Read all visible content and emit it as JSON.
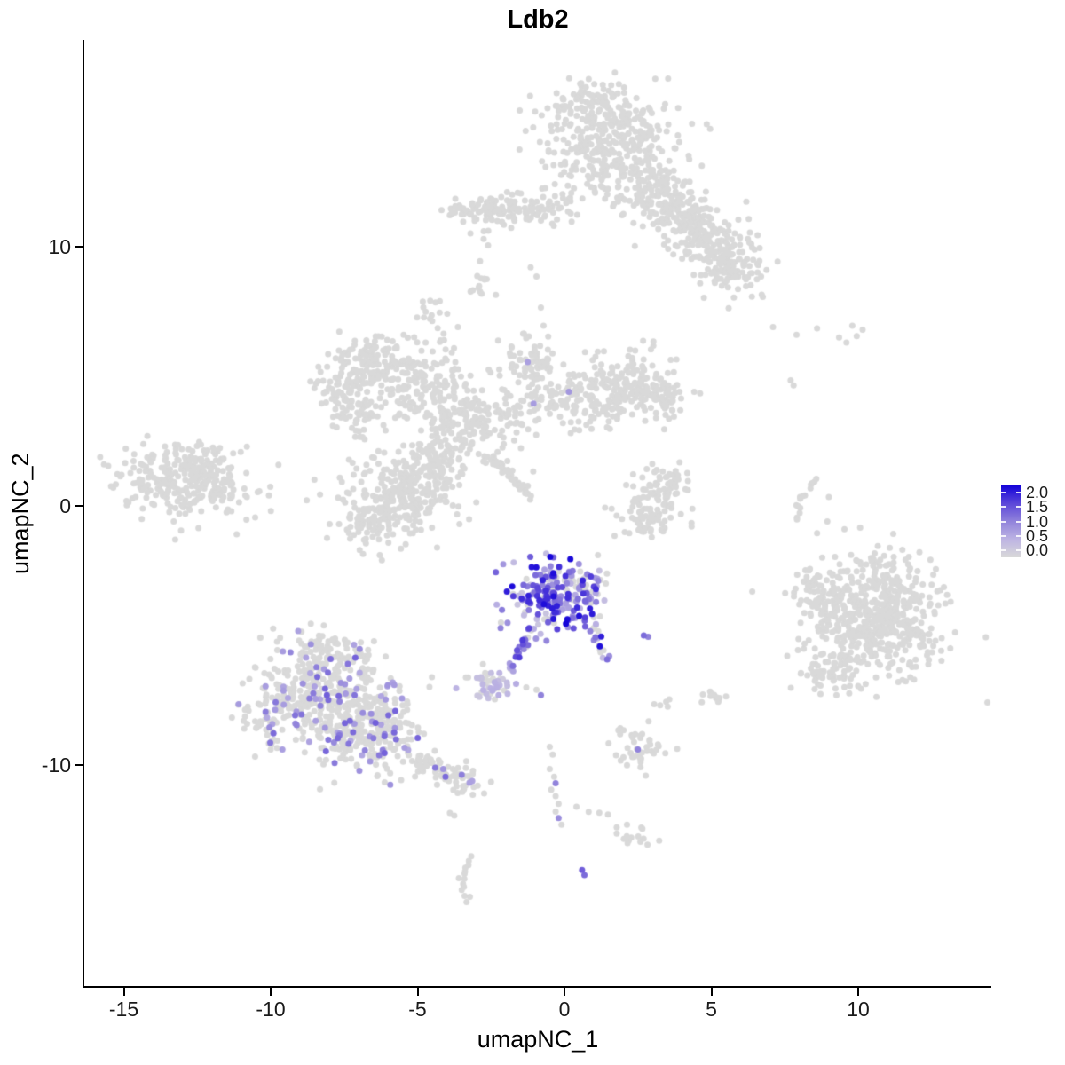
{
  "chart_data": {
    "type": "scatter",
    "title": "Ldb2",
    "xlabel": "umapNC_1",
    "ylabel": "umapNC_2",
    "x_ticks": [
      -15,
      -10,
      -5,
      0,
      5,
      10
    ],
    "x_tick_labels": [
      "-15",
      "-10",
      "-5",
      "0",
      "5",
      "10"
    ],
    "y_ticks": [
      10,
      0,
      -10
    ],
    "y_tick_labels": [
      "10",
      "0",
      "-10"
    ],
    "xlim": [
      -16.3,
      14.5
    ],
    "ylim": [
      -18.6,
      18.0
    ],
    "grid": false,
    "legend": {
      "position": "right",
      "labels": [
        "2.0",
        "1.5",
        "1.0",
        "0.5",
        "0.0"
      ],
      "values": [
        2.0,
        1.5,
        1.0,
        0.5,
        0.0
      ],
      "min": 0.0,
      "max": 2.0
    },
    "colors": {
      "background": "#FFFFFF",
      "axis": "#000000",
      "zero_expression": "#D9D9D9",
      "ramp_low_to_high": [
        "#D9D9D9",
        "#BDB4E3",
        "#9183DB",
        "#5B46D9",
        "#1403D9"
      ]
    },
    "point_radius_px": 3.5,
    "clusters": [
      {
        "name": "top-main",
        "type": "gauss",
        "cx": 1.6,
        "cy": 14.0,
        "sx": 1.1,
        "sy": 1.0,
        "n": 360
      },
      {
        "name": "top-upper",
        "type": "gauss",
        "cx": 1.0,
        "cy": 15.6,
        "sx": 0.8,
        "sy": 0.45,
        "n": 70
      },
      {
        "name": "top-arm-1",
        "type": "gauss",
        "cx": 3.1,
        "cy": 12.0,
        "sx": 0.6,
        "sy": 0.55,
        "n": 110
      },
      {
        "name": "top-arm-2",
        "type": "gauss",
        "cx": 4.2,
        "cy": 11.1,
        "sx": 0.6,
        "sy": 0.55,
        "n": 110
      },
      {
        "name": "top-arm-3",
        "type": "gauss",
        "cx": 5.1,
        "cy": 10.1,
        "sx": 0.6,
        "sy": 0.5,
        "n": 100
      },
      {
        "name": "top-arm-4",
        "type": "gauss",
        "cx": 5.7,
        "cy": 9.1,
        "sx": 0.55,
        "sy": 0.5,
        "n": 90
      },
      {
        "name": "top-band",
        "type": "gauss",
        "cx": -1.3,
        "cy": 11.5,
        "sx": 1.15,
        "sy": 0.33,
        "n": 120
      },
      {
        "name": "top-band-far-left",
        "type": "gauss",
        "cx": -3.1,
        "cy": 11.3,
        "sx": 0.45,
        "sy": 0.28,
        "n": 30
      },
      {
        "name": "top-small-blob",
        "type": "gauss",
        "cx": -2.75,
        "cy": 8.6,
        "sx": 0.22,
        "sy": 0.35,
        "n": 13
      },
      {
        "name": "mid-left-arm",
        "type": "gauss",
        "cx": -6.4,
        "cy": 5.4,
        "sx": 0.95,
        "sy": 0.6,
        "n": 170
      },
      {
        "name": "mid-left-spur",
        "type": "gauss",
        "cx": -7.5,
        "cy": 4.4,
        "sx": 0.45,
        "sy": 0.45,
        "n": 50
      },
      {
        "name": "mid-left-low",
        "type": "gauss",
        "cx": -6.9,
        "cy": 3.4,
        "sx": 0.5,
        "sy": 0.4,
        "n": 50
      },
      {
        "name": "mid-connector",
        "type": "gauss",
        "cx": -4.7,
        "cy": 4.4,
        "sx": 0.75,
        "sy": 0.55,
        "n": 110
      },
      {
        "name": "mid-top-blob",
        "type": "gauss",
        "cx": -4.5,
        "cy": 7.4,
        "sx": 0.3,
        "sy": 0.3,
        "n": 15
      },
      {
        "name": "mid-top-chain",
        "type": "line",
        "x1": -4.2,
        "y1": 6.6,
        "x2": -3.8,
        "y2": 5.4,
        "n": 10,
        "jx": 0.12,
        "jy": 0.12
      },
      {
        "name": "mid-central",
        "type": "gauss",
        "cx": -3.1,
        "cy": 3.1,
        "sx": 0.85,
        "sy": 0.7,
        "n": 170
      },
      {
        "name": "mid-upper-arm",
        "type": "gauss",
        "cx": -1.3,
        "cy": 5.2,
        "sx": 0.5,
        "sy": 0.85,
        "n": 90
      },
      {
        "name": "mid-right-arm",
        "type": "gauss",
        "cx": 0.7,
        "cy": 4.2,
        "sx": 1.05,
        "sy": 0.6,
        "n": 150
      },
      {
        "name": "mid-right-end",
        "type": "gauss",
        "cx": 2.4,
        "cy": 4.7,
        "sx": 0.75,
        "sy": 0.6,
        "n": 120
      },
      {
        "name": "mid-right-tip",
        "type": "gauss",
        "cx": 3.3,
        "cy": 4.1,
        "sx": 0.4,
        "sy": 0.5,
        "n": 50
      },
      {
        "name": "mid-lower-lobe",
        "type": "gauss",
        "cx": -5.4,
        "cy": 0.5,
        "sx": 0.95,
        "sy": 0.8,
        "n": 260
      },
      {
        "name": "mid-lobe-tail",
        "type": "gauss",
        "cx": -6.6,
        "cy": -0.7,
        "sx": 0.55,
        "sy": 0.45,
        "n": 70
      },
      {
        "name": "mid-streak",
        "type": "line",
        "x1": -2.55,
        "y1": 1.95,
        "x2": -1.15,
        "y2": 0.35,
        "n": 45,
        "jx": 0.07,
        "jy": 0.07
      },
      {
        "name": "mid-connector-2",
        "type": "gauss",
        "cx": -4.3,
        "cy": 1.8,
        "sx": 0.55,
        "sy": 0.5,
        "n": 80
      },
      {
        "name": "left-island",
        "type": "gauss",
        "cx": -12.6,
        "cy": 1.05,
        "sx": 1.05,
        "sy": 0.7,
        "n": 270
      },
      {
        "name": "left-island-tip",
        "type": "gauss",
        "cx": -14.3,
        "cy": 0.9,
        "sx": 0.5,
        "sy": 0.35,
        "n": 30
      },
      {
        "name": "center-crescent-upper",
        "type": "gauss",
        "cx": 3.3,
        "cy": 0.7,
        "sx": 0.5,
        "sy": 0.4,
        "n": 70
      },
      {
        "name": "center-crescent-lower",
        "type": "gauss",
        "cx": 2.8,
        "cy": -0.45,
        "sx": 0.55,
        "sy": 0.38,
        "n": 65
      },
      {
        "name": "right-arc-upper",
        "type": "line",
        "x1": 8.55,
        "y1": 1.05,
        "x2": 8.0,
        "y2": 0.3,
        "n": 8,
        "jx": 0.06,
        "jy": 0.06
      },
      {
        "name": "right-arc-lower",
        "type": "line",
        "x1": 8.0,
        "y1": 0.3,
        "x2": 7.9,
        "y2": -0.55,
        "n": 7,
        "jx": 0.06,
        "jy": 0.06
      },
      {
        "name": "right-island",
        "type": "gauss",
        "cx": 10.5,
        "cy": -4.3,
        "sx": 1.15,
        "sy": 1.2,
        "n": 600
      },
      {
        "name": "right-island-appendage",
        "type": "gauss",
        "cx": 8.35,
        "cy": -3.3,
        "sx": 0.3,
        "sy": 0.55,
        "n": 35
      },
      {
        "name": "right-island-spur",
        "type": "gauss",
        "cx": 9.0,
        "cy": -6.6,
        "sx": 0.5,
        "sy": 0.35,
        "n": 45
      },
      {
        "name": "expr-main",
        "type": "gauss",
        "cx": -0.45,
        "cy": -3.5,
        "sx": 0.72,
        "sy": 0.65,
        "n": 190,
        "expr": {
          "frac": 0.8,
          "lo": 0.25,
          "hi": 2.0
        }
      },
      {
        "name": "expr-top-right",
        "type": "gauss",
        "cx": 0.55,
        "cy": -2.9,
        "sx": 0.45,
        "sy": 0.4,
        "n": 45,
        "expr": {
          "frac": 0.55,
          "lo": 0.3,
          "hi": 1.8
        }
      },
      {
        "name": "expr-tail-left",
        "type": "line",
        "x1": -1.25,
        "y1": -4.85,
        "x2": -1.85,
        "y2": -6.3,
        "n": 24,
        "jx": 0.09,
        "jy": 0.09,
        "expr": {
          "frac": 0.88,
          "lo": 0.5,
          "hi": 1.6
        }
      },
      {
        "name": "expr-tail-right",
        "type": "line",
        "x1": 0.95,
        "y1": -4.35,
        "x2": 1.35,
        "y2": -5.9,
        "n": 20,
        "jx": 0.1,
        "jy": 0.1,
        "expr": {
          "frac": 0.5,
          "lo": 0.4,
          "hi": 2.0
        }
      },
      {
        "name": "small-center-cluster",
        "type": "gauss",
        "cx": -2.55,
        "cy": -6.9,
        "sx": 0.42,
        "sy": 0.3,
        "n": 48,
        "expr": {
          "frac": 0.5,
          "lo": 0.15,
          "hi": 0.6
        }
      },
      {
        "name": "bottom-left-upper",
        "type": "gauss",
        "cx": -8.4,
        "cy": -7.3,
        "sx": 1.05,
        "sy": 0.95,
        "n": 320,
        "expr": {
          "frac": 0.12,
          "lo": 0.6,
          "hi": 1.3
        }
      },
      {
        "name": "bottom-left-lower",
        "type": "gauss",
        "cx": -6.7,
        "cy": -8.7,
        "sx": 0.95,
        "sy": 0.8,
        "n": 270,
        "expr": {
          "frac": 0.13,
          "lo": 0.6,
          "hi": 1.3
        }
      },
      {
        "name": "bottom-left-top-spur",
        "type": "gauss",
        "cx": -8.1,
        "cy": -5.6,
        "sx": 0.7,
        "sy": 0.35,
        "n": 70,
        "expr": {
          "frac": 0.1,
          "lo": 0.6,
          "hi": 1.2
        }
      },
      {
        "name": "bottom-left-west-edge",
        "type": "gauss",
        "cx": -10.2,
        "cy": -8.3,
        "sx": 0.4,
        "sy": 0.6,
        "n": 45,
        "expr": {
          "frac": 0.1,
          "lo": 0.6,
          "hi": 1.2
        }
      },
      {
        "name": "bottom-left-tail",
        "type": "line",
        "x1": -5.2,
        "y1": -9.7,
        "x2": -3.0,
        "y2": -10.85,
        "n": 85,
        "jx": 0.3,
        "jy": 0.28,
        "expr": {
          "frac": 0.1,
          "lo": 0.6,
          "hi": 1.2
        }
      },
      {
        "name": "bottom-chain-row",
        "type": "line",
        "x1": 0.45,
        "y1": -11.65,
        "x2": 1.5,
        "y2": -11.9,
        "n": 4,
        "jx": 0.04,
        "jy": 0.04
      },
      {
        "name": "bottom-blob",
        "type": "gauss",
        "cx": 2.3,
        "cy": -12.65,
        "sx": 0.32,
        "sy": 0.2,
        "n": 15
      },
      {
        "name": "bottom-crescent-upper",
        "type": "line",
        "x1": -3.2,
        "y1": -13.55,
        "x2": -3.5,
        "y2": -14.4,
        "n": 7,
        "jx": 0.07,
        "jy": 0.05
      },
      {
        "name": "bottom-crescent-lower",
        "type": "line",
        "x1": -3.5,
        "y1": -14.4,
        "x2": -3.3,
        "y2": -15.3,
        "n": 7,
        "jx": 0.07,
        "jy": 0.05
      },
      {
        "name": "bottom-right-small",
        "type": "gauss",
        "cx": 2.5,
        "cy": -9.35,
        "sx": 0.5,
        "sy": 0.42,
        "n": 42
      },
      {
        "name": "bottom-tiny-blob-1",
        "type": "gauss",
        "cx": 3.4,
        "cy": -7.55,
        "sx": 0.15,
        "sy": 0.15,
        "n": 5
      },
      {
        "name": "bottom-tiny-blob-2",
        "type": "gauss",
        "cx": 5.05,
        "cy": -7.3,
        "sx": 0.25,
        "sy": 0.2,
        "n": 12
      }
    ],
    "stray_points": [
      {
        "x": -1.15,
        "y": 9.2
      },
      {
        "x": -0.95,
        "y": 8.85
      },
      {
        "x": -2.75,
        "y": 10.3
      },
      {
        "x": -2.6,
        "y": 10.05
      },
      {
        "x": -1.25,
        "y": 5.55,
        "v": 0.7
      },
      {
        "x": -1.05,
        "y": 3.95,
        "v": 0.75
      },
      {
        "x": 0.15,
        "y": 4.4,
        "v": 0.8
      },
      {
        "x": -13.3,
        "y": -0.6
      },
      {
        "x": -13.05,
        "y": -0.95
      },
      {
        "x": -13.25,
        "y": -1.3
      },
      {
        "x": 7.1,
        "y": 6.9
      },
      {
        "x": 7.9,
        "y": 6.6
      },
      {
        "x": 8.6,
        "y": 6.85
      },
      {
        "x": 9.35,
        "y": 6.5
      },
      {
        "x": 9.8,
        "y": 6.95
      },
      {
        "x": 9.95,
        "y": 6.55
      },
      {
        "x": 9.6,
        "y": 6.3
      },
      {
        "x": 10.15,
        "y": 6.8
      },
      {
        "x": 7.7,
        "y": 4.85
      },
      {
        "x": 7.8,
        "y": 4.65
      },
      {
        "x": 9.0,
        "y": 0.34
      },
      {
        "x": 8.95,
        "y": -0.6
      },
      {
        "x": 8.6,
        "y": -1.05
      },
      {
        "x": 2.7,
        "y": -5.0,
        "v": 1.2
      },
      {
        "x": 2.85,
        "y": -5.05,
        "v": 1.0
      },
      {
        "x": 0.05,
        "y": -4.55,
        "v": 2.0
      },
      {
        "x": 0.5,
        "y": -4.25,
        "v": 1.9
      },
      {
        "x": -1.3,
        "y": -7.0
      },
      {
        "x": -0.95,
        "y": -7.1
      },
      {
        "x": -0.8,
        "y": -7.3,
        "v": 1.0
      },
      {
        "x": -4.4,
        "y": -10.1,
        "v": 1.1
      },
      {
        "x": -4.05,
        "y": -10.45,
        "v": 1.2
      },
      {
        "x": -10.9,
        "y": -8.6
      },
      {
        "x": -10.75,
        "y": -7.9
      },
      {
        "x": -0.5,
        "y": -10.15
      },
      {
        "x": -0.35,
        "y": -10.45
      },
      {
        "x": -0.3,
        "y": -10.7,
        "v": 1.0
      },
      {
        "x": -0.45,
        "y": -10.95
      },
      {
        "x": -0.3,
        "y": -11.2
      },
      {
        "x": -0.2,
        "y": -11.5
      },
      {
        "x": -0.3,
        "y": -11.8
      },
      {
        "x": -0.2,
        "y": -12.05,
        "v": 0.9
      },
      {
        "x": -0.1,
        "y": -12.3
      },
      {
        "x": -0.4,
        "y": -9.6
      },
      {
        "x": -0.5,
        "y": -9.3
      },
      {
        "x": 0.6,
        "y": -14.05,
        "v": 1.3
      },
      {
        "x": 0.68,
        "y": -14.25,
        "v": 1.2
      },
      {
        "x": -3.9,
        "y": -11.85
      },
      {
        "x": -3.75,
        "y": -11.95
      },
      {
        "x": 2.5,
        "y": -9.4,
        "v": 1.0
      }
    ]
  }
}
